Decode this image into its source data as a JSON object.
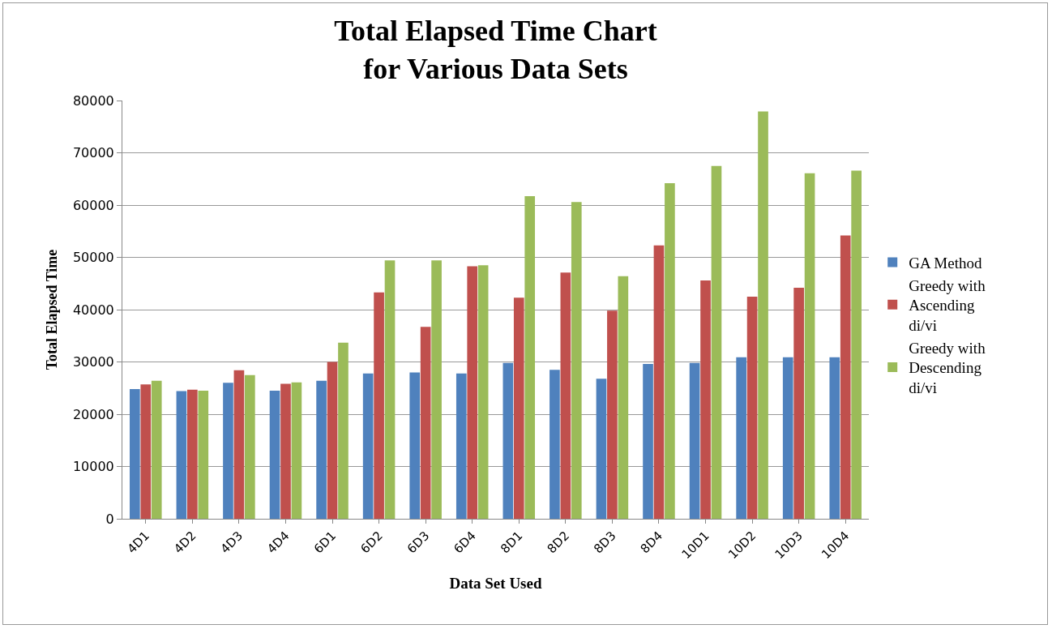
{
  "chart_data": {
    "type": "bar",
    "title": "Total Elapsed Time Chart\nfor Various Data Sets",
    "xlabel": "Data Set Used",
    "ylabel": "Total Elapsed Time",
    "categories": [
      "4D1",
      "4D2",
      "4D3",
      "4D4",
      "6D1",
      "6D2",
      "6D3",
      "6D4",
      "8D1",
      "8D2",
      "8D3",
      "8D4",
      "10D1",
      "10D2",
      "10D3",
      "10D4"
    ],
    "series": [
      {
        "name": "GA Method",
        "color": "#4f81bd",
        "values": [
          24800,
          24400,
          26000,
          24500,
          26400,
          27800,
          28000,
          27800,
          29800,
          28500,
          26800,
          29600,
          29800,
          30900,
          30900,
          30900
        ]
      },
      {
        "name": "Greedy with Ascending di/vi",
        "color": "#c0504d",
        "values": [
          25700,
          24700,
          28400,
          25800,
          30000,
          43300,
          36700,
          48300,
          42300,
          47100,
          39800,
          52300,
          45600,
          42500,
          44200,
          54200
        ]
      },
      {
        "name": "Greedy with Descending di/vi",
        "color": "#9bbb59",
        "values": [
          26400,
          24500,
          27500,
          26100,
          33700,
          49400,
          49400,
          48500,
          61700,
          60600,
          46400,
          64200,
          67500,
          77900,
          66100,
          66600
        ]
      }
    ],
    "ylim": [
      0,
      80000
    ],
    "yticks": [
      0,
      10000,
      20000,
      30000,
      40000,
      50000,
      60000,
      70000,
      80000
    ],
    "grid": "y",
    "legend": "right"
  }
}
